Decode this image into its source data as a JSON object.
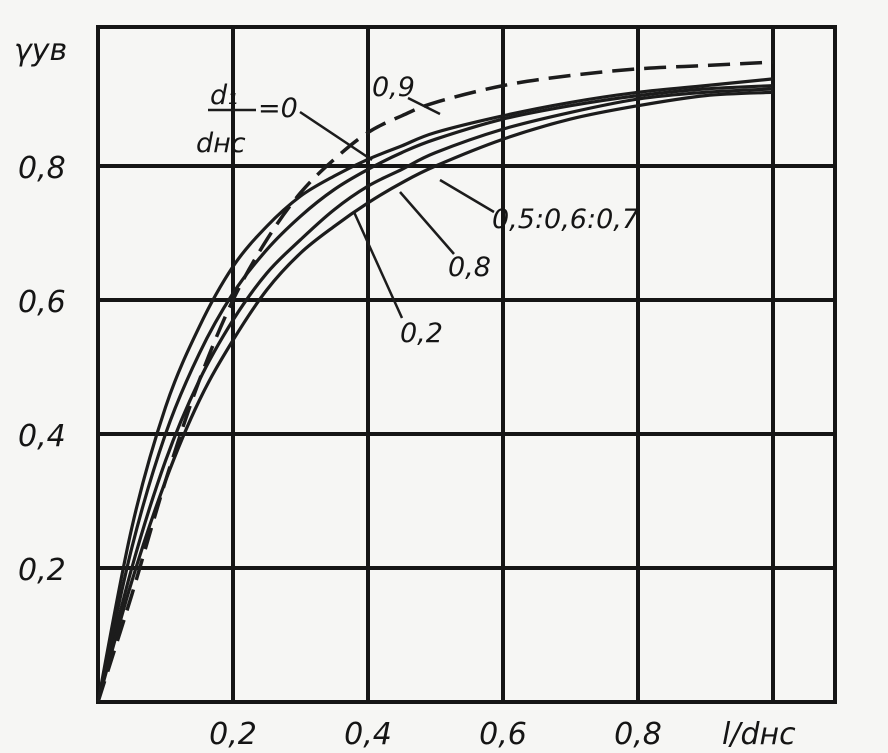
{
  "chart_data": {
    "type": "line",
    "title": "",
    "xlabel": "l/dнс",
    "ylabel": "γув",
    "xlim": [
      0,
      1.0
    ],
    "ylim": [
      0,
      1.0
    ],
    "x_ticks": [
      {
        "value": 0.2,
        "label": "0,2"
      },
      {
        "value": 0.4,
        "label": "0,4"
      },
      {
        "value": 0.6,
        "label": "0,6"
      },
      {
        "value": 0.8,
        "label": "0,8"
      }
    ],
    "y_ticks": [
      {
        "value": 0.2,
        "label": "0,2"
      },
      {
        "value": 0.4,
        "label": "0,4"
      },
      {
        "value": 0.6,
        "label": "0,6"
      },
      {
        "value": 0.8,
        "label": "0,8"
      }
    ],
    "grid": true,
    "series": [
      {
        "name": "0",
        "style": "solid",
        "x": [
          0,
          0.05,
          0.1,
          0.15,
          0.2,
          0.25,
          0.3,
          0.35,
          0.4,
          0.45,
          0.5,
          0.6,
          0.7,
          0.8,
          0.9,
          1.0
        ],
        "y": [
          0,
          0.26,
          0.44,
          0.56,
          0.65,
          0.71,
          0.755,
          0.785,
          0.81,
          0.83,
          0.85,
          0.875,
          0.895,
          0.91,
          0.92,
          0.93
        ]
      },
      {
        "name": "0,2",
        "style": "solid",
        "x": [
          0,
          0.05,
          0.1,
          0.15,
          0.2,
          0.25,
          0.3,
          0.35,
          0.4,
          0.45,
          0.5,
          0.6,
          0.7,
          0.8,
          0.9,
          1.0
        ],
        "y": [
          0,
          0.2,
          0.36,
          0.48,
          0.57,
          0.64,
          0.69,
          0.735,
          0.77,
          0.795,
          0.82,
          0.855,
          0.88,
          0.9,
          0.91,
          0.915
        ]
      },
      {
        "name": "0,5; 0,6; 0,7",
        "style": "solid",
        "x": [
          0,
          0.05,
          0.1,
          0.15,
          0.2,
          0.25,
          0.3,
          0.35,
          0.4,
          0.45,
          0.5,
          0.6,
          0.7,
          0.8,
          0.9,
          1.0
        ],
        "y": [
          0,
          0.23,
          0.4,
          0.52,
          0.61,
          0.675,
          0.725,
          0.765,
          0.795,
          0.82,
          0.84,
          0.87,
          0.89,
          0.905,
          0.915,
          0.92
        ]
      },
      {
        "name": "0,8",
        "style": "solid",
        "x": [
          0,
          0.05,
          0.1,
          0.15,
          0.2,
          0.25,
          0.3,
          0.35,
          0.4,
          0.45,
          0.5,
          0.6,
          0.7,
          0.8,
          0.9,
          1.0
        ],
        "y": [
          0,
          0.18,
          0.33,
          0.45,
          0.54,
          0.615,
          0.67,
          0.71,
          0.745,
          0.775,
          0.8,
          0.84,
          0.87,
          0.89,
          0.905,
          0.91
        ]
      },
      {
        "name": "0,9",
        "style": "dashed",
        "x": [
          0,
          0.05,
          0.1,
          0.15,
          0.2,
          0.25,
          0.3,
          0.35,
          0.4,
          0.45,
          0.5,
          0.6,
          0.7,
          0.8,
          0.9,
          1.0
        ],
        "y": [
          0,
          0.16,
          0.33,
          0.48,
          0.6,
          0.69,
          0.76,
          0.81,
          0.85,
          0.875,
          0.895,
          0.92,
          0.935,
          0.945,
          0.95,
          0.955
        ]
      }
    ],
    "annotations": {
      "ratio_top": "d₁",
      "ratio_eq": "=0",
      "ratio_bottom": "dнс",
      "label_09": "0,9",
      "label_567": "0,5:0,6:0,7",
      "label_08": "0,8",
      "label_02": "0,2"
    }
  }
}
